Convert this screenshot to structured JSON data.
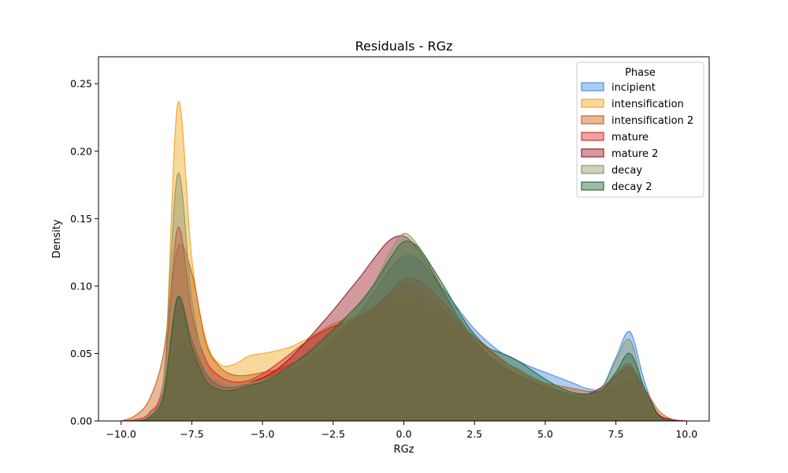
{
  "chart_data": {
    "type": "area",
    "title": "Residuals - RGz",
    "xlabel": "RGz",
    "ylabel": "Density",
    "xlim": [
      -10.8,
      10.8
    ],
    "ylim": [
      0,
      0.27
    ],
    "xticks": [
      -10.0,
      -7.5,
      -5.0,
      -2.5,
      0.0,
      2.5,
      5.0,
      7.5,
      10.0
    ],
    "xtick_labels": [
      "−10.0",
      "−7.5",
      "−5.0",
      "−2.5",
      "0.0",
      "2.5",
      "5.0",
      "7.5",
      "10.0"
    ],
    "yticks": [
      0.0,
      0.05,
      0.1,
      0.15,
      0.2,
      0.25
    ],
    "ytick_labels": [
      "0.00",
      "0.05",
      "0.10",
      "0.15",
      "0.20",
      "0.25"
    ],
    "grid": false,
    "legend": {
      "title": "Phase",
      "placement": "top-right"
    },
    "x": [
      -10.0,
      -9.5,
      -9.0,
      -8.5,
      -8.0,
      -7.5,
      -7.0,
      -6.5,
      -6.0,
      -5.5,
      -5.0,
      -4.5,
      -4.0,
      -3.5,
      -3.0,
      -2.5,
      -2.0,
      -1.5,
      -1.0,
      -0.5,
      0.0,
      0.5,
      1.0,
      1.5,
      2.0,
      2.5,
      3.0,
      3.5,
      4.0,
      4.5,
      5.0,
      5.5,
      6.0,
      6.5,
      7.0,
      7.5,
      8.0,
      8.5,
      9.0,
      9.5,
      10.0
    ],
    "series": [
      {
        "name": "incipient",
        "color": "#4a90e2",
        "values": [
          0.0,
          0.0,
          0.003,
          0.02,
          0.058,
          0.05,
          0.035,
          0.028,
          0.025,
          0.027,
          0.03,
          0.033,
          0.037,
          0.042,
          0.05,
          0.06,
          0.07,
          0.082,
          0.097,
          0.112,
          0.122,
          0.12,
          0.108,
          0.095,
          0.081,
          0.068,
          0.058,
          0.05,
          0.045,
          0.04,
          0.036,
          0.032,
          0.028,
          0.024,
          0.025,
          0.047,
          0.066,
          0.03,
          0.004,
          0.0,
          0.0
        ]
      },
      {
        "name": "intensification",
        "color": "#f5a623",
        "values": [
          0.0,
          0.0,
          0.003,
          0.02,
          0.235,
          0.12,
          0.06,
          0.042,
          0.042,
          0.048,
          0.05,
          0.052,
          0.055,
          0.06,
          0.066,
          0.072,
          0.076,
          0.08,
          0.086,
          0.09,
          0.092,
          0.09,
          0.084,
          0.076,
          0.068,
          0.06,
          0.052,
          0.045,
          0.037,
          0.03,
          0.025,
          0.021,
          0.018,
          0.017,
          0.02,
          0.03,
          0.038,
          0.017,
          0.003,
          0.0,
          0.0
        ]
      },
      {
        "name": "intensification 2",
        "color": "#c8661a",
        "values": [
          0.0,
          0.004,
          0.016,
          0.05,
          0.128,
          0.11,
          0.058,
          0.04,
          0.034,
          0.034,
          0.036,
          0.038,
          0.042,
          0.048,
          0.055,
          0.063,
          0.071,
          0.078,
          0.085,
          0.093,
          0.1,
          0.098,
          0.09,
          0.08,
          0.07,
          0.06,
          0.05,
          0.042,
          0.035,
          0.031,
          0.028,
          0.026,
          0.024,
          0.022,
          0.022,
          0.026,
          0.03,
          0.024,
          0.008,
          0.001,
          0.0
        ]
      },
      {
        "name": "mature",
        "color": "#d93030",
        "values": [
          0.0,
          0.001,
          0.006,
          0.03,
          0.143,
          0.08,
          0.045,
          0.033,
          0.029,
          0.03,
          0.035,
          0.042,
          0.05,
          0.058,
          0.065,
          0.07,
          0.074,
          0.078,
          0.085,
          0.095,
          0.105,
          0.104,
          0.096,
          0.085,
          0.073,
          0.062,
          0.053,
          0.045,
          0.038,
          0.032,
          0.027,
          0.023,
          0.02,
          0.019,
          0.022,
          0.034,
          0.042,
          0.02,
          0.005,
          0.001,
          0.0
        ]
      },
      {
        "name": "mature 2",
        "color": "#9c1f2b",
        "values": [
          0.0,
          0.0,
          0.002,
          0.016,
          0.09,
          0.06,
          0.035,
          0.026,
          0.025,
          0.028,
          0.032,
          0.038,
          0.047,
          0.058,
          0.07,
          0.082,
          0.095,
          0.108,
          0.122,
          0.134,
          0.137,
          0.127,
          0.11,
          0.092,
          0.075,
          0.06,
          0.048,
          0.04,
          0.034,
          0.029,
          0.025,
          0.022,
          0.02,
          0.02,
          0.025,
          0.033,
          0.04,
          0.024,
          0.005,
          0.001,
          0.0
        ]
      },
      {
        "name": "decay",
        "color": "#8a9a6a",
        "values": [
          0.0,
          0.0,
          0.004,
          0.03,
          0.183,
          0.09,
          0.04,
          0.03,
          0.027,
          0.028,
          0.03,
          0.034,
          0.04,
          0.047,
          0.055,
          0.064,
          0.075,
          0.088,
          0.104,
          0.125,
          0.139,
          0.13,
          0.112,
          0.093,
          0.075,
          0.06,
          0.05,
          0.044,
          0.039,
          0.033,
          0.028,
          0.023,
          0.02,
          0.019,
          0.023,
          0.045,
          0.06,
          0.023,
          0.003,
          0.0,
          0.0
        ]
      },
      {
        "name": "decay 2",
        "color": "#2e6b3a",
        "values": [
          0.0,
          0.0,
          0.003,
          0.02,
          0.092,
          0.055,
          0.03,
          0.023,
          0.023,
          0.026,
          0.029,
          0.034,
          0.041,
          0.049,
          0.058,
          0.068,
          0.078,
          0.089,
          0.103,
          0.12,
          0.133,
          0.129,
          0.114,
          0.097,
          0.079,
          0.064,
          0.054,
          0.05,
          0.045,
          0.038,
          0.031,
          0.025,
          0.021,
          0.02,
          0.023,
          0.036,
          0.05,
          0.025,
          0.004,
          0.0,
          0.0
        ]
      }
    ]
  }
}
